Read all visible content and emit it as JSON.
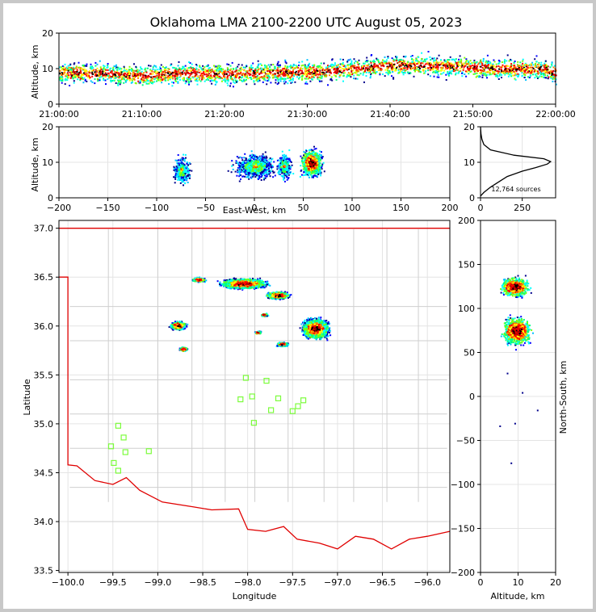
{
  "chart_data": [
    {
      "type": "scatter",
      "panel": "time-altitude",
      "title": "Oklahoma LMA 2100-2200 UTC August 05, 2023",
      "xlabel": "",
      "ylabel": "Altitude, km",
      "xticks": [
        "21:00:00",
        "21:10:00",
        "21:20:00",
        "21:30:00",
        "21:40:00",
        "21:50:00",
        "22:00:00"
      ],
      "xlim_minutes": [
        0,
        60
      ],
      "ylim": [
        0,
        20
      ],
      "yticks": [
        0,
        10,
        20
      ],
      "series": [
        {
          "x": [
            1,
            5,
            10,
            15,
            20,
            25,
            30,
            35,
            40,
            45,
            50,
            55,
            59
          ],
          "y": [
            9,
            9,
            8,
            9,
            8.5,
            9,
            9,
            10,
            11,
            11,
            10.5,
            10,
            10
          ]
        }
      ]
    },
    {
      "type": "scatter",
      "panel": "east-west-altitude",
      "xlabel": "East-West, km",
      "ylabel": "Altitude, km",
      "xlim": [
        -200,
        200
      ],
      "ylim": [
        0,
        20
      ],
      "xticks": [
        -200,
        -150,
        -100,
        -50,
        0,
        50,
        100,
        150,
        200
      ],
      "yticks": [
        0,
        10,
        20
      ],
      "clusters": [
        {
          "x": -75,
          "y": 8,
          "spread_x": 12
        },
        {
          "x": 0,
          "y": 9,
          "spread_x": 30
        },
        {
          "x": 30,
          "y": 9,
          "spread_x": 10
        },
        {
          "x": 58,
          "y": 10,
          "spread_x": 15
        }
      ]
    },
    {
      "type": "line",
      "panel": "altitude-histogram",
      "xlim": [
        0,
        450
      ],
      "ylim": [
        0,
        20
      ],
      "xticks": [
        0,
        250
      ],
      "yticks": [
        0,
        10,
        20
      ],
      "annotation": "12,764 sources",
      "x": [
        0,
        20,
        60,
        110,
        160,
        250,
        330,
        400,
        420,
        380,
        200,
        60,
        20,
        8,
        3,
        0
      ],
      "y": [
        0.5,
        1.5,
        3.0,
        4.5,
        6.0,
        7.5,
        8.5,
        9.5,
        10.2,
        11.0,
        12.0,
        13.5,
        15,
        16.5,
        18,
        20
      ]
    },
    {
      "type": "scatter",
      "panel": "plan-view",
      "xlabel": "Longitude",
      "ylabel": "Latitude",
      "xlim": [
        -100.1,
        -95.75
      ],
      "ylim": [
        33.48,
        37.08
      ],
      "xticks": [
        -100.0,
        -99.5,
        -99.0,
        -98.5,
        -98.0,
        -97.5,
        -97.0,
        -96.5,
        -96.0
      ],
      "yticks": [
        33.5,
        34.0,
        34.5,
        35.0,
        35.5,
        36.0,
        36.5,
        37.0
      ],
      "stations": [
        {
          "lon": -98.02,
          "lat": 35.47
        },
        {
          "lon": -97.79,
          "lat": 35.44
        },
        {
          "lon": -98.08,
          "lat": 35.25
        },
        {
          "lon": -97.95,
          "lat": 35.28
        },
        {
          "lon": -97.66,
          "lat": 35.26
        },
        {
          "lon": -97.74,
          "lat": 35.14
        },
        {
          "lon": -97.5,
          "lat": 35.13
        },
        {
          "lon": -97.44,
          "lat": 35.18
        },
        {
          "lon": -97.38,
          "lat": 35.24
        },
        {
          "lon": -97.93,
          "lat": 35.01
        },
        {
          "lon": -99.44,
          "lat": 34.98
        },
        {
          "lon": -99.38,
          "lat": 34.86
        },
        {
          "lon": -99.52,
          "lat": 34.77
        },
        {
          "lon": -99.36,
          "lat": 34.71
        },
        {
          "lon": -99.1,
          "lat": 34.72
        },
        {
          "lon": -99.49,
          "lat": 34.6
        },
        {
          "lon": -99.44,
          "lat": 34.52
        }
      ],
      "clusters": [
        {
          "lon": -98.05,
          "lat": 36.44,
          "rlon": 0.35,
          "rlat": 0.07
        },
        {
          "lon": -97.67,
          "lat": 36.32,
          "rlon": 0.18,
          "rlat": 0.05
        },
        {
          "lon": -98.55,
          "lat": 36.48,
          "rlon": 0.1,
          "rlat": 0.03
        },
        {
          "lon": -97.25,
          "lat": 35.98,
          "rlon": 0.2,
          "rlat": 0.14
        },
        {
          "lon": -98.78,
          "lat": 36.01,
          "rlon": 0.12,
          "rlat": 0.06
        },
        {
          "lon": -98.72,
          "lat": 35.77,
          "rlon": 0.06,
          "rlat": 0.03
        },
        {
          "lon": -97.82,
          "lat": 36.12,
          "rlon": 0.05,
          "rlat": 0.02
        },
        {
          "lon": -97.89,
          "lat": 35.94,
          "rlon": 0.05,
          "rlat": 0.02
        },
        {
          "lon": -97.62,
          "lat": 35.82,
          "rlon": 0.09,
          "rlat": 0.03
        }
      ]
    },
    {
      "type": "scatter",
      "panel": "altitude-north-south",
      "xlabel": "Altitude, km",
      "ylabel": "North-South, km",
      "xlim": [
        0,
        20
      ],
      "ylim": [
        -200,
        200
      ],
      "xticks": [
        0,
        10,
        20
      ],
      "yticks": [
        -200,
        -150,
        -100,
        -50,
        0,
        50,
        100,
        150,
        200
      ],
      "clusters": [
        {
          "x": 9,
          "y": 125,
          "spread_y": 15
        },
        {
          "x": 9.5,
          "y": 75,
          "spread_y": 22
        }
      ]
    }
  ]
}
